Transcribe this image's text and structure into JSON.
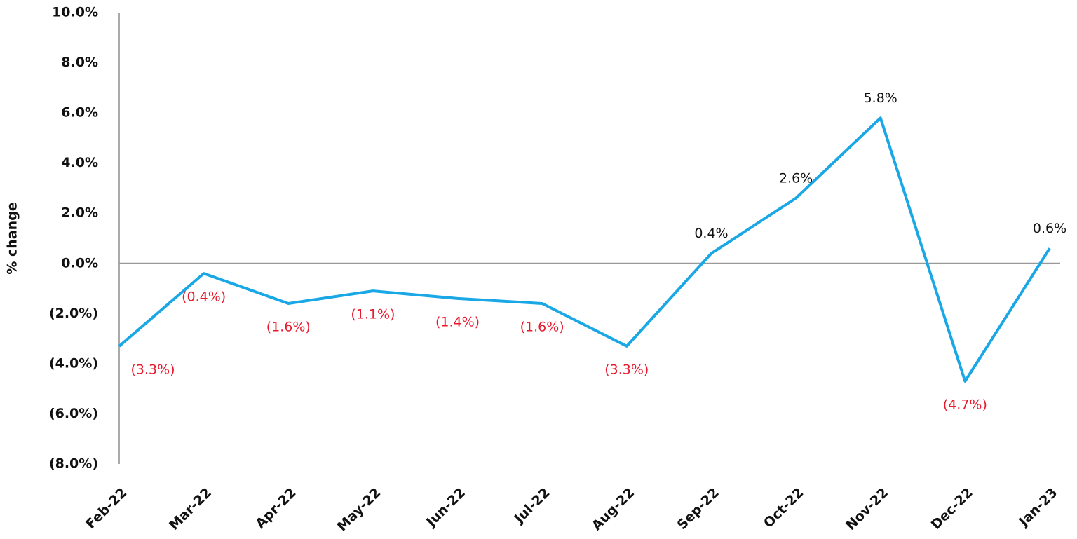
{
  "chart_data": {
    "type": "line",
    "y_label": "% change",
    "categories": [
      "Feb-22",
      "Mar-22",
      "Apr-22",
      "May-22",
      "Jun-22",
      "Jul-22",
      "Aug-22",
      "Sep-22",
      "Oct-22",
      "Nov-22",
      "Dec-22",
      "Jan-23"
    ],
    "series": [
      {
        "color": "#1aa7e6",
        "values": [
          -3.3,
          -0.4,
          -1.6,
          -1.1,
          -1.4,
          -1.6,
          -3.3,
          0.4,
          2.6,
          5.8,
          -4.7,
          0.6
        ],
        "value_labels": [
          "(3.3%)",
          "(0.4%)",
          "(1.6%)",
          "(1.1%)",
          "(1.4%)",
          "(1.6%)",
          "(3.3%)",
          "0.4%",
          "2.6%",
          "5.8%",
          "(4.7%)",
          "0.6%"
        ]
      }
    ],
    "ylim": [
      -8,
      10
    ],
    "yticks": [
      {
        "value": -8,
        "label": "(8.0%)"
      },
      {
        "value": -6,
        "label": "(6.0%)"
      },
      {
        "value": -4,
        "label": "(4.0%)"
      },
      {
        "value": -2,
        "label": "(2.0%)"
      },
      {
        "value": 0,
        "label": "0.0%"
      },
      {
        "value": 2,
        "label": "2.0%"
      },
      {
        "value": 4,
        "label": "4.0%"
      },
      {
        "value": 6,
        "label": "6.0%"
      },
      {
        "value": 8,
        "label": "8.0%"
      },
      {
        "value": 10,
        "label": "10.0%"
      }
    ]
  }
}
